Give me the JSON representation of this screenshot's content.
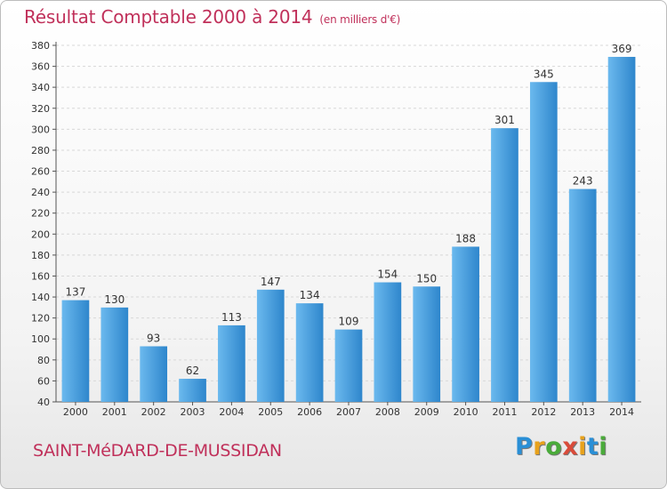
{
  "header": {
    "title": "Résultat Comptable 2000 à 2014",
    "subtitle": "(en milliers d'€)"
  },
  "footer": {
    "commune": "SAINT-MéDARD-DE-MUSSIDAN",
    "logo_letters": [
      {
        "ch": "P",
        "color": "#2a8fd6"
      },
      {
        "ch": "r",
        "color": "#e8a21c"
      },
      {
        "ch": "o",
        "color": "#4aab3a"
      },
      {
        "ch": "x",
        "color": "#d94b3a"
      },
      {
        "ch": "i",
        "color": "#e8a21c"
      },
      {
        "ch": "t",
        "color": "#2a8fd6"
      },
      {
        "ch": "i",
        "color": "#4aab3a"
      }
    ]
  },
  "colors": {
    "bar_light": "#6bb9ee",
    "bar_dark": "#2e86cc",
    "grid": "#d8d8d8",
    "text": "#333333"
  },
  "chart_data": {
    "type": "bar",
    "title": "Résultat Comptable 2000 à 2014",
    "subtitle": "(en milliers d'€)",
    "categories": [
      "2000",
      "2001",
      "2002",
      "2003",
      "2004",
      "2005",
      "2006",
      "2007",
      "2008",
      "2009",
      "2010",
      "2011",
      "2012",
      "2013",
      "2014"
    ],
    "values": [
      137,
      130,
      93,
      62,
      113,
      147,
      134,
      109,
      154,
      150,
      188,
      301,
      345,
      243,
      369
    ],
    "ylim": [
      40,
      380
    ],
    "ytick_step": 20,
    "grid": true,
    "legend": "none"
  }
}
